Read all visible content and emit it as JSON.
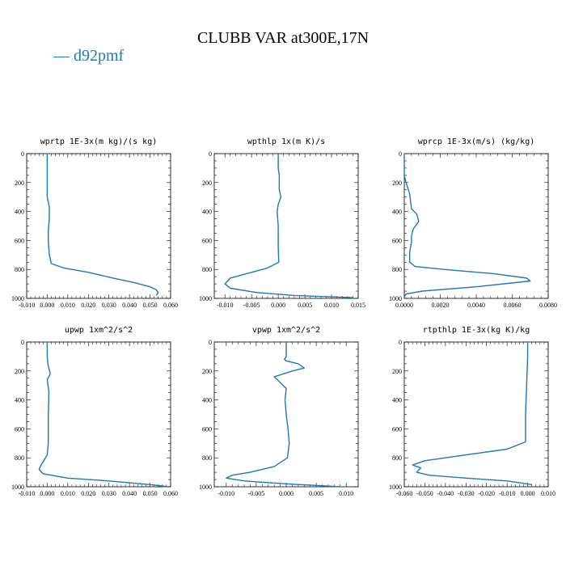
{
  "figure": {
    "title": "CLUBB VAR at300E,17N",
    "legend_label": "— d92pmf",
    "series_color": "#1f77b4"
  },
  "chart_data": [
    {
      "type": "line",
      "title": "wprtp  1E-3x(m kg)/(s kg)",
      "xlim": [
        -0.01,
        0.06
      ],
      "xticks": [
        -0.01,
        0.0,
        0.01,
        0.02,
        0.03,
        0.04,
        0.05,
        0.06
      ],
      "xtick_labels": [
        "-0.010",
        "0.000",
        "0.010",
        "0.020",
        "0.030",
        "0.040",
        "0.050",
        "0.060"
      ],
      "ylim": [
        0,
        1000
      ],
      "yticks": [
        0,
        200,
        400,
        600,
        800,
        1000
      ],
      "yaxis_inverted": true,
      "series": [
        {
          "x": [
            0.0,
            0.0,
            0.0,
            0.0,
            0.001,
            0.001,
            0.0005,
            0.0005,
            0.001,
            0.002,
            0.008,
            0.02,
            0.032,
            0.042,
            0.05,
            0.053,
            0.054,
            0.053
          ],
          "y": [
            0,
            100,
            200,
            300,
            370,
            450,
            530,
            600,
            700,
            760,
            790,
            820,
            860,
            890,
            920,
            940,
            960,
            980
          ]
        }
      ]
    },
    {
      "type": "line",
      "title": "wpthlp  1x(m K)/s",
      "xlim": [
        -0.012,
        0.015
      ],
      "xticks": [
        -0.01,
        -0.005,
        0.0,
        0.005,
        0.01,
        0.015
      ],
      "xtick_labels": [
        "-0.010",
        "-0.005",
        "0.000",
        "0.005",
        "0.010",
        "0.015"
      ],
      "ylim": [
        0,
        1000
      ],
      "yticks": [
        0,
        200,
        400,
        600,
        800,
        1000
      ],
      "yaxis_inverted": true,
      "series": [
        {
          "x": [
            0.0,
            0.0,
            0.0002,
            0.0002,
            0.0005,
            0.0,
            -0.0002,
            0.0,
            0.0,
            0.0001,
            -0.002,
            -0.006,
            -0.009,
            -0.01,
            -0.009,
            -0.004,
            0.003,
            0.014
          ],
          "y": [
            0,
            100,
            150,
            250,
            300,
            350,
            400,
            500,
            650,
            750,
            790,
            830,
            860,
            900,
            930,
            960,
            980,
            995
          ]
        }
      ]
    },
    {
      "type": "line",
      "title": "wprcp  1E-3x(m/s) (kg/kg)",
      "xlim": [
        0.0,
        0.008
      ],
      "xticks": [
        0.0,
        0.002,
        0.004,
        0.006,
        0.008
      ],
      "xtick_labels": [
        "0.0000",
        "0.0020",
        "0.0040",
        "0.0060",
        "0.0080"
      ],
      "ylim": [
        0,
        1000
      ],
      "yticks": [
        0,
        200,
        400,
        600,
        800,
        1000
      ],
      "yaxis_inverted": true,
      "series": [
        {
          "x": [
            0.0,
            0.0,
            0.0001,
            0.0003,
            0.0004,
            0.0007,
            0.0008,
            0.0005,
            0.0004,
            0.0004,
            0.0003,
            0.0003,
            0.0006,
            0.0022,
            0.005,
            0.0068,
            0.007,
            0.004,
            0.001,
            0.0001,
            0.0
          ],
          "y": [
            0,
            150,
            200,
            280,
            380,
            420,
            470,
            520,
            570,
            610,
            680,
            750,
            780,
            800,
            830,
            860,
            880,
            920,
            950,
            970,
            990
          ]
        }
      ]
    },
    {
      "type": "line",
      "title": "upwp   1xm^2/s^2",
      "xlim": [
        -0.01,
        0.06
      ],
      "xticks": [
        -0.01,
        0.0,
        0.01,
        0.02,
        0.03,
        0.04,
        0.05,
        0.06
      ],
      "xtick_labels": [
        "-0.010",
        "0.000",
        "0.010",
        "0.020",
        "0.030",
        "0.040",
        "0.050",
        "0.060"
      ],
      "ylim": [
        0,
        1000
      ],
      "yticks": [
        0,
        200,
        400,
        600,
        800,
        1000
      ],
      "yaxis_inverted": true,
      "series": [
        {
          "x": [
            0.0,
            0.0,
            0.0003,
            0.0015,
            0.0,
            0.0008,
            0.0005,
            0.0005,
            0.0,
            -0.003,
            -0.004,
            -0.002,
            0.01,
            0.03,
            0.05,
            0.059
          ],
          "y": [
            0,
            100,
            150,
            220,
            260,
            350,
            500,
            700,
            780,
            850,
            880,
            910,
            940,
            960,
            985,
            1000
          ]
        }
      ]
    },
    {
      "type": "line",
      "title": "vpwp   1xm^2/s^2",
      "xlim": [
        -0.012,
        0.012
      ],
      "xticks": [
        -0.01,
        -0.005,
        0.0,
        0.005,
        0.01
      ],
      "xtick_labels": [
        "-0.010",
        "-0.005",
        "0.000",
        "0.005",
        "0.010"
      ],
      "ylim": [
        0,
        1000
      ],
      "yticks": [
        0,
        200,
        400,
        600,
        800,
        1000
      ],
      "yaxis_inverted": true,
      "series": [
        {
          "x": [
            0.0,
            0.0,
            -0.0003,
            0.0,
            0.002,
            0.003,
            0.001,
            -0.002,
            -0.001,
            0.0,
            -0.0002,
            0.0,
            0.0003,
            0.0005,
            0.0002,
            -0.002,
            -0.006,
            -0.009,
            -0.01,
            -0.007,
            0.0,
            0.009
          ],
          "y": [
            0,
            100,
            120,
            130,
            150,
            180,
            200,
            240,
            280,
            320,
            400,
            500,
            600,
            700,
            800,
            860,
            900,
            920,
            940,
            960,
            980,
            1000
          ]
        }
      ]
    },
    {
      "type": "line",
      "title": "rtpthlp  1E-3x(kg K)/kg",
      "xlim": [
        -0.06,
        0.01
      ],
      "xticks": [
        -0.06,
        -0.05,
        -0.04,
        -0.03,
        -0.02,
        -0.01,
        0.0,
        0.01
      ],
      "xtick_labels": [
        "-0.060",
        "-0.050",
        "-0.040",
        "-0.030",
        "-0.020",
        "-0.010",
        "0.000",
        "0.010"
      ],
      "ylim": [
        0,
        1000
      ],
      "yticks": [
        0,
        200,
        400,
        600,
        800,
        1000
      ],
      "yaxis_inverted": true,
      "series": [
        {
          "x": [
            0.0,
            0.0,
            -0.0005,
            -0.001,
            -0.001,
            -0.01,
            -0.03,
            -0.05,
            -0.056,
            -0.052,
            -0.054,
            -0.048,
            -0.03,
            -0.01,
            0.002
          ],
          "y": [
            0,
            100,
            300,
            500,
            690,
            740,
            780,
            820,
            850,
            870,
            900,
            920,
            940,
            960,
            985
          ]
        }
      ]
    }
  ]
}
